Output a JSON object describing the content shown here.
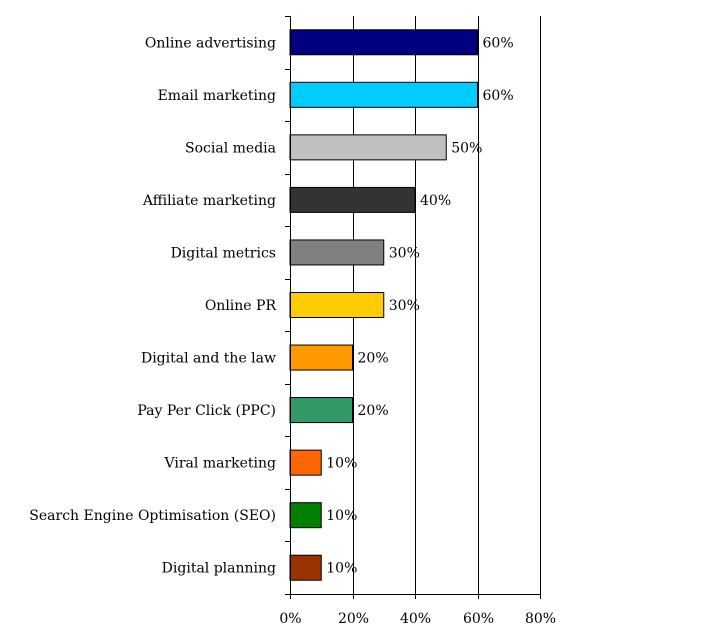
{
  "chart_data": {
    "type": "bar",
    "orientation": "horizontal",
    "categories": [
      "Online advertising",
      "Email marketing",
      "Social media",
      "Affiliate marketing",
      "Digital metrics",
      "Online PR",
      "Digital and the law",
      "Pay Per Click (PPC)",
      "Viral marketing",
      "Search Engine Optimisation (SEO)",
      "Digital planning"
    ],
    "values": [
      60,
      60,
      50,
      40,
      30,
      30,
      20,
      20,
      10,
      10,
      10
    ],
    "value_labels": [
      "60%",
      "60%",
      "50%",
      "40%",
      "30%",
      "30%",
      "20%",
      "20%",
      "10%",
      "10%",
      "10%"
    ],
    "colors": [
      "#000080",
      "#00CCFF",
      "#C0C0C0",
      "#333333",
      "#808080",
      "#FFCC00",
      "#FF9900",
      "#339966",
      "#FF6600",
      "#008000",
      "#993300"
    ],
    "xlim": [
      0,
      80
    ],
    "xticks": [
      0,
      20,
      40,
      60,
      80
    ],
    "xtick_labels": [
      "0%",
      "20%",
      "40%",
      "60%",
      "80%"
    ],
    "title": "",
    "xlabel": "",
    "ylabel": "",
    "grid": "vertical",
    "legend": "none"
  }
}
